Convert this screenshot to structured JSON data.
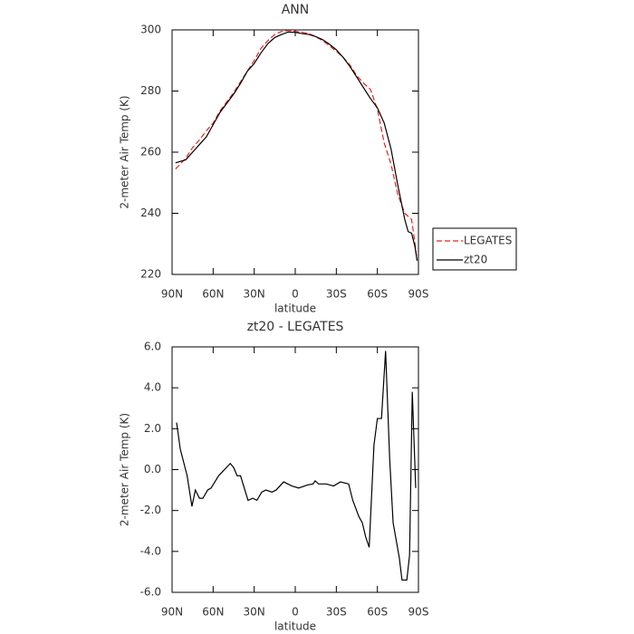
{
  "chart_data": [
    {
      "type": "line",
      "title": "ANN",
      "xlabel": "latitude",
      "ylabel": "2-meter Air Temp (K)",
      "x": [
        87.5,
        80,
        75,
        70,
        65,
        60,
        55,
        50,
        45,
        40,
        35,
        30,
        25,
        20,
        15,
        10,
        5,
        0,
        -5,
        -10,
        -15,
        -20,
        -25,
        -30,
        -35,
        -40,
        -45,
        -50,
        -55,
        -60,
        -65,
        -70,
        -75,
        -80,
        -82.5,
        -85,
        -87.5,
        -89
      ],
      "series": [
        {
          "name": "LEGATES",
          "color": "#e8231f",
          "linestyle": "dashed",
          "values": [
            254.5,
            258,
            261.5,
            264,
            267,
            269.5,
            273.5,
            276.5,
            279.5,
            283,
            286.5,
            290,
            294,
            296.5,
            298.5,
            299.5,
            299.8,
            299.5,
            299.2,
            298.8,
            297.8,
            296.5,
            294.8,
            293,
            291,
            288.5,
            285,
            282.5,
            280.5,
            274,
            263,
            256,
            246,
            240,
            239,
            238,
            230,
            224.5
          ]
        },
        {
          "name": "zt20",
          "color": "#000000",
          "linestyle": "solid",
          "values": [
            256.5,
            257.5,
            260,
            262.5,
            265,
            269,
            273,
            276,
            279,
            282.5,
            286.5,
            289,
            292.5,
            295.5,
            297.5,
            298.5,
            299.3,
            299.2,
            298.8,
            298.5,
            297.8,
            296.8,
            295.3,
            293.5,
            291,
            288,
            284.5,
            281,
            277.5,
            274.5,
            269.5,
            261,
            249,
            238,
            234,
            233.5,
            229,
            224.5
          ]
        }
      ],
      "xlim": [
        90,
        -90
      ],
      "xticks": [
        {
          "value": 90,
          "label": "90N"
        },
        {
          "value": 60,
          "label": "60N"
        },
        {
          "value": 30,
          "label": "30N"
        },
        0,
        {
          "value": -30,
          "label": "30S"
        },
        {
          "value": -60,
          "label": "60S"
        },
        {
          "value": -90,
          "label": "90S"
        }
      ],
      "ylim": [
        220,
        300
      ],
      "yticks": [
        220,
        240,
        260,
        280,
        300
      ],
      "legend": "outside right"
    },
    {
      "type": "line",
      "title": "zt20 - LEGATES",
      "xlabel": "latitude",
      "ylabel": "2-meter Air Temp (K)",
      "x": [
        86.7,
        84,
        79,
        75.5,
        73,
        70,
        67.5,
        64,
        61.5,
        56,
        47.5,
        45,
        42.5,
        40,
        34.5,
        31,
        28,
        24.5,
        21.5,
        17,
        14,
        8.5,
        2.5,
        -2.5,
        -9,
        -13,
        -14.5,
        -17,
        -22.5,
        -28,
        -33,
        -39,
        -42,
        -46.5,
        -49,
        -51.5,
        -54,
        -57.5,
        -60,
        -63,
        -66,
        -69,
        -71.5,
        -76,
        -78,
        -81.5,
        -83.5,
        -85.5,
        -88
      ],
      "series": [
        {
          "color": "#000000",
          "linestyle": "solid",
          "values": [
            2.3,
            1.0,
            -0.3,
            -1.8,
            -1.0,
            -1.4,
            -1.4,
            -1.0,
            -0.9,
            -0.3,
            0.3,
            0.1,
            -0.3,
            -0.3,
            -1.5,
            -1.4,
            -1.5,
            -1.1,
            -1.0,
            -1.1,
            -1.0,
            -0.6,
            -0.8,
            -0.9,
            -0.75,
            -0.7,
            -0.55,
            -0.7,
            -0.7,
            -0.8,
            -0.6,
            -0.7,
            -1.5,
            -2.3,
            -2.6,
            -3.3,
            -3.8,
            1.2,
            2.5,
            2.5,
            5.8,
            0.5,
            -2.6,
            -4.3,
            -5.4,
            -5.4,
            -4.2,
            3.8,
            -0.9
          ]
        }
      ],
      "xlim": [
        90,
        -90
      ],
      "xticks": [
        {
          "value": 90,
          "label": "90N"
        },
        {
          "value": 60,
          "label": "60N"
        },
        {
          "value": 30,
          "label": "30N"
        },
        0,
        {
          "value": -30,
          "label": "30S"
        },
        {
          "value": -60,
          "label": "60S"
        },
        {
          "value": -90,
          "label": "90S"
        }
      ],
      "ylim": [
        -6,
        6
      ],
      "yticks": [
        {
          "value": -6,
          "label": "-6.0"
        },
        {
          "value": -4,
          "label": "-4.0"
        },
        {
          "value": -2,
          "label": "-2.0"
        },
        {
          "value": 0,
          "label": "0.0"
        },
        {
          "value": 2,
          "label": "2.0"
        },
        {
          "value": 4,
          "label": "4.0"
        },
        {
          "value": 6,
          "label": "6.0"
        }
      ]
    }
  ]
}
